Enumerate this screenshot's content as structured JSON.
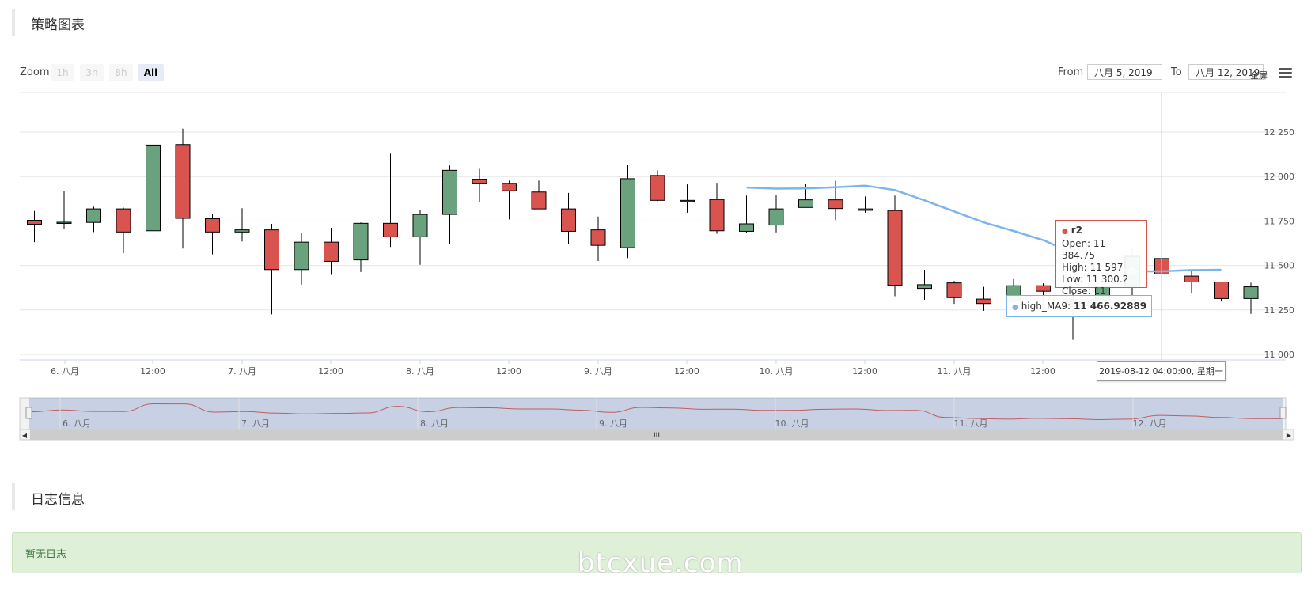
{
  "header": {
    "title": "策略图表"
  },
  "toolbar": {
    "zoom_label": "Zoom",
    "zoom_buttons": [
      "1h",
      "3h",
      "8h",
      "All"
    ],
    "from_label": "From",
    "from_value": "八月 5, 2019",
    "to_label": "To",
    "to_value": "八月 12, 2019",
    "fullscreen_label": "全屏"
  },
  "chart_data": {
    "type": "candlestick",
    "y_ticks": [
      "12 250",
      "12 000",
      "11 750",
      "11 500",
      "11 250",
      "11 000"
    ],
    "ylim": [
      11000,
      12250
    ],
    "x_ticks": [
      "6. 八月",
      "12:00",
      "7. 八月",
      "12:00",
      "8. 八月",
      "12:00",
      "9. 八月",
      "12:00",
      "10. 八月",
      "12:00",
      "11. 八月",
      "12:00"
    ],
    "navigator_ticks": [
      "6. 八月",
      "7. 八月",
      "8. 八月",
      "9. 八月",
      "10. 八月",
      "11. 八月",
      "12. 八月"
    ],
    "series": [
      {
        "name": "r2",
        "color_down": "#d9534f",
        "color_up": "#6aa27d",
        "candles": [
          {
            "o": 11754,
            "h": 11806,
            "l": 11631,
            "c": 11732
          },
          {
            "o": 11742,
            "h": 11919,
            "l": 11706,
            "c": 11743
          },
          {
            "o": 11742,
            "h": 11830,
            "l": 11688,
            "c": 11818
          },
          {
            "o": 11818,
            "h": 11825,
            "l": 11569,
            "c": 11688
          },
          {
            "o": 11695,
            "h": 12274,
            "l": 11647,
            "c": 12177
          },
          {
            "o": 12180,
            "h": 12269,
            "l": 11595,
            "c": 11765
          },
          {
            "o": 11763,
            "h": 11788,
            "l": 11562,
            "c": 11688
          },
          {
            "o": 11688,
            "h": 11822,
            "l": 11635,
            "c": 11700
          },
          {
            "o": 11700,
            "h": 11734,
            "l": 11225,
            "c": 11477
          },
          {
            "o": 11477,
            "h": 11684,
            "l": 11392,
            "c": 11631
          },
          {
            "o": 11631,
            "h": 11712,
            "l": 11447,
            "c": 11523
          },
          {
            "o": 11531,
            "h": 11742,
            "l": 11463,
            "c": 11737
          },
          {
            "o": 11737,
            "h": 12129,
            "l": 11604,
            "c": 11661
          },
          {
            "o": 11661,
            "h": 11814,
            "l": 11504,
            "c": 11787
          },
          {
            "o": 11787,
            "h": 12062,
            "l": 11619,
            "c": 12035
          },
          {
            "o": 11985,
            "h": 12043,
            "l": 11855,
            "c": 11962
          },
          {
            "o": 11962,
            "h": 11977,
            "l": 11759,
            "c": 11920
          },
          {
            "o": 11913,
            "h": 11977,
            "l": 11820,
            "c": 11818
          },
          {
            "o": 11818,
            "h": 11908,
            "l": 11621,
            "c": 11692
          },
          {
            "o": 11700,
            "h": 11775,
            "l": 11525,
            "c": 11613
          },
          {
            "o": 11600,
            "h": 12067,
            "l": 11541,
            "c": 11988
          },
          {
            "o": 12006,
            "h": 12035,
            "l": 11861,
            "c": 11866
          },
          {
            "o": 11866,
            "h": 11956,
            "l": 11797,
            "c": 11866
          },
          {
            "o": 11871,
            "h": 11965,
            "l": 11678,
            "c": 11695
          },
          {
            "o": 11692,
            "h": 11893,
            "l": 11684,
            "c": 11734
          },
          {
            "o": 11727,
            "h": 11897,
            "l": 11686,
            "c": 11818
          },
          {
            "o": 11826,
            "h": 11960,
            "l": 11826,
            "c": 11869
          },
          {
            "o": 11869,
            "h": 11976,
            "l": 11755,
            "c": 11820
          },
          {
            "o": 11818,
            "h": 11888,
            "l": 11797,
            "c": 11810
          },
          {
            "o": 11809,
            "h": 11893,
            "l": 11327,
            "c": 11389
          },
          {
            "o": 11371,
            "h": 11476,
            "l": 11307,
            "c": 11392
          },
          {
            "o": 11402,
            "h": 11413,
            "l": 11284,
            "c": 11319
          },
          {
            "o": 11311,
            "h": 11380,
            "l": 11245,
            "c": 11286
          },
          {
            "o": 11299,
            "h": 11423,
            "l": 11270,
            "c": 11386
          },
          {
            "o": 11386,
            "h": 11400,
            "l": 11301,
            "c": 11355
          },
          {
            "o": 11301,
            "h": 11350,
            "l": 11082,
            "c": 11270
          },
          {
            "o": 11306,
            "h": 11380,
            "l": 11300,
            "c": 11380
          },
          {
            "o": 11384.75,
            "h": 11597,
            "l": 11300.2,
            "c": 11550.69
          },
          {
            "o": 11539,
            "h": 11564,
            "l": 11425,
            "c": 11452
          },
          {
            "o": 11440,
            "h": 11473,
            "l": 11342,
            "c": 11407
          },
          {
            "o": 11407,
            "h": 11407,
            "l": 11297,
            "c": 11314
          },
          {
            "o": 11314,
            "h": 11403,
            "l": 11228,
            "c": 11380
          }
        ]
      },
      {
        "name": "high_MA9",
        "color": "#7cb5ec",
        "start_index": 24,
        "values": [
          11938,
          11932,
          11933,
          11940,
          11949,
          11924,
          11866,
          11804,
          11742,
          11694,
          11643,
          11570,
          11497,
          11467,
          11466.92889,
          11474,
          11476
        ]
      }
    ]
  },
  "tooltip": {
    "series_name": "r2",
    "open": "Open: 11 384.75",
    "high": "High: 11 597",
    "low": "Low: 11 300.2",
    "close": "Close: 11 550.69",
    "ma_label": "high_MA9: ",
    "ma_value": "11 466.92889",
    "x_label": "2019-08-12 04:00:00, 星期一"
  },
  "legend": {
    "item1": "r2",
    "item2": "high_MA9"
  },
  "logs": {
    "title": "日志信息",
    "empty_text": "暂无日志"
  },
  "watermark": "btcxue.com"
}
